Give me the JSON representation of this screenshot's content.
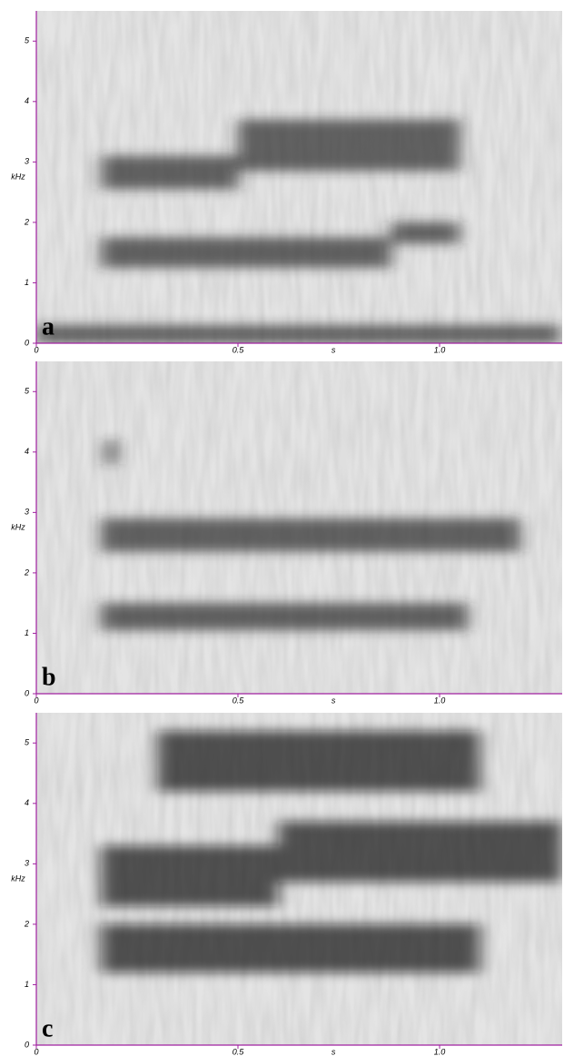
{
  "chart_data": [
    {
      "type": "spectrogram",
      "panel_label": "a",
      "xlabel": "s",
      "ylabel": "kHz",
      "xlim": [
        0,
        1.304
      ],
      "ylim": [
        0,
        5.5
      ],
      "xticks": [
        0,
        0.5,
        {
          "value": 1,
          "label": "1.0"
        }
      ],
      "yticks": [
        0,
        1,
        2,
        3,
        4,
        5
      ],
      "band_color": "#2a2a2a",
      "bands": [
        {
          "start": 0.16,
          "end": 0.88,
          "low": 1.25,
          "high": 1.75
        },
        {
          "start": 0.88,
          "end": 1.05,
          "low": 1.65,
          "high": 2.0
        },
        {
          "start": 0.16,
          "end": 0.5,
          "low": 2.55,
          "high": 3.1
        },
        {
          "start": 0.5,
          "end": 1.05,
          "low": 2.85,
          "high": 3.7
        },
        {
          "start": 0,
          "end": 1.3,
          "low": 0,
          "high": 0.3
        }
      ]
    },
    {
      "type": "spectrogram",
      "panel_label": "b",
      "xlabel": "s",
      "ylabel": "kHz",
      "xlim": [
        0,
        1.304
      ],
      "ylim": [
        0,
        5.5
      ],
      "xticks": [
        0,
        0.5,
        {
          "value": 1,
          "label": "1.0"
        }
      ],
      "yticks": [
        0,
        1,
        2,
        3,
        4,
        5
      ],
      "band_color": "#2a2a2a",
      "bands": [
        {
          "start": 0.16,
          "end": 1.07,
          "low": 1.05,
          "high": 1.5
        },
        {
          "start": 0.16,
          "end": 1.2,
          "low": 2.35,
          "high": 2.9
        },
        {
          "start": 0.17,
          "end": 0.2,
          "low": 3.8,
          "high": 4.2
        }
      ]
    },
    {
      "type": "spectrogram",
      "panel_label": "c",
      "xlabel": "s",
      "ylabel": "kHz",
      "xlim": [
        0,
        1.304
      ],
      "ylim": [
        0,
        5.5
      ],
      "xticks": [
        0,
        0.5,
        {
          "value": 1,
          "label": "1.0"
        }
      ],
      "yticks": [
        0,
        1,
        2,
        3,
        4,
        5
      ],
      "band_color": "#111111",
      "bands": [
        {
          "start": 0.16,
          "end": 1.1,
          "low": 1.2,
          "high": 2.0
        },
        {
          "start": 0.16,
          "end": 0.6,
          "low": 2.3,
          "high": 3.3
        },
        {
          "start": 0.6,
          "end": 1.304,
          "low": 2.7,
          "high": 3.7
        },
        {
          "start": 0.3,
          "end": 1.1,
          "low": 4.2,
          "high": 5.2
        }
      ]
    }
  ]
}
